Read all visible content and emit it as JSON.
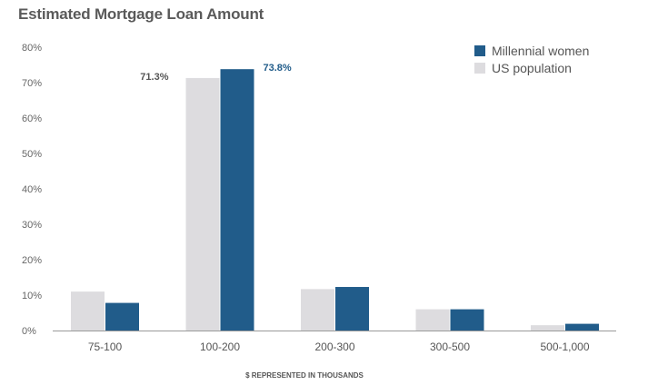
{
  "chart_data": {
    "type": "bar",
    "title": "Estimated Mortgage Loan Amount",
    "xlabel": "$ REPRESENTED IN THOUSANDS",
    "ylabel": "",
    "ylim": [
      0,
      80
    ],
    "y_ticks": [
      "0%",
      "10%",
      "20%",
      "30%",
      "40%",
      "50%",
      "60%",
      "70%",
      "80%"
    ],
    "categories": [
      "75-100",
      "100-200",
      "200-300",
      "300-500",
      "500-1,000"
    ],
    "series": [
      {
        "name": "US population",
        "values": [
          11,
          71.3,
          11.7,
          6,
          1.5
        ],
        "color": "#dddcdf"
      },
      {
        "name": "Millennial women",
        "values": [
          7.8,
          73.8,
          12.3,
          6,
          1.9
        ],
        "color": "#215c8a"
      }
    ],
    "data_labels": [
      {
        "series": 0,
        "category": 1,
        "text": "71.3%",
        "color": "#555555"
      },
      {
        "series": 1,
        "category": 1,
        "text": "73.8%",
        "color": "#215c8a"
      }
    ],
    "legend_position": "top-right",
    "grid": false
  }
}
